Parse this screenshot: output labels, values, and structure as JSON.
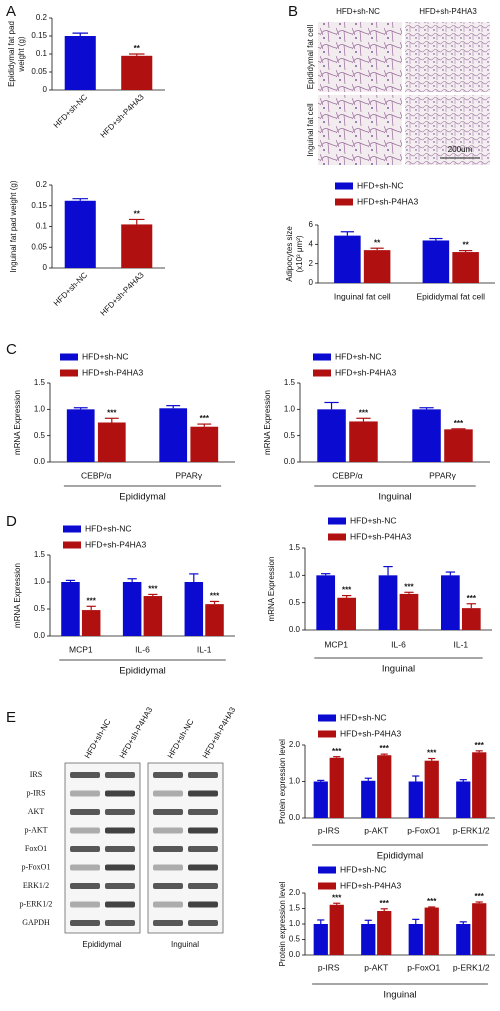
{
  "panel_labels": [
    "A",
    "B",
    "C",
    "D",
    "E"
  ],
  "histology": {
    "columns": [
      "HFD+sh-NC",
      "HFD+sh-P4HA3"
    ],
    "rows": [
      "Epididymal fat cell",
      "Inguinal fat cell"
    ],
    "scale_bar": "200um"
  },
  "blot": {
    "columns": [
      "HFD+sh-NC",
      "HFD+sh-P4HA3"
    ],
    "rows": [
      "IRS",
      "p-IRS",
      "AKT",
      "p-AKT",
      "FoxO1",
      "p-FoxO1",
      "ERK1/2",
      "p-ERK1/2",
      "GAPDH"
    ],
    "tissues": [
      "Epididymal",
      "Inguinal"
    ]
  },
  "chart_data": [
    {
      "type": "bar",
      "ylabel": [
        "Epididymal fat pad",
        "weight (g)"
      ],
      "categories": [
        "HFD+sh-NC",
        "HFD+sh-P4HA3"
      ],
      "values": [
        0.15,
        0.095
      ],
      "errors": [
        0.008,
        0.005
      ],
      "colors": [
        "#0a0ad0",
        "#b01010"
      ],
      "significance": [
        null,
        "**"
      ],
      "ylim": [
        0,
        0.2
      ],
      "yticks": [
        0,
        0.05,
        0.1,
        0.15,
        0.2
      ]
    },
    {
      "type": "bar",
      "ylabel": [
        "Inguinal fat pad weight (g)"
      ],
      "categories": [
        "HFD+sh-NC",
        "HFD+sh-P4HA3"
      ],
      "values": [
        0.162,
        0.105
      ],
      "errors": [
        0.005,
        0.012
      ],
      "colors": [
        "#0a0ad0",
        "#b01010"
      ],
      "significance": [
        null,
        "**"
      ],
      "ylim": [
        0,
        0.2
      ],
      "yticks": [
        0,
        0.05,
        0.1,
        0.15,
        0.2
      ]
    },
    {
      "type": "bar",
      "ylabel": [
        "Adipocytes size",
        "(x10³ μm²)"
      ],
      "categories": [
        "Inguinal fat cell",
        "Epididymal  fat cell"
      ],
      "series": [
        {
          "name": "HFD+sh-NC",
          "color": "#0a0ad0",
          "values": [
            4.9,
            4.4
          ],
          "errors": [
            0.4,
            0.2
          ]
        },
        {
          "name": "HFD+sh-P4HA3",
          "color": "#b01010",
          "values": [
            3.4,
            3.2
          ],
          "errors": [
            0.2,
            0.15
          ],
          "significance": [
            "**",
            "**"
          ]
        }
      ],
      "ylim": [
        0,
        6
      ],
      "yticks": [
        0,
        2,
        4,
        6
      ],
      "legend": true
    },
    {
      "type": "bar",
      "ylabel": [
        "mRNA Expression"
      ],
      "categories": [
        "CEBP/α",
        "PPARγ"
      ],
      "group_label": "Epididymal",
      "series": [
        {
          "name": "HFD+sh-NC",
          "color": "#0a0ad0",
          "values": [
            1.0,
            1.02
          ],
          "errors": [
            0.03,
            0.05
          ]
        },
        {
          "name": "HFD+sh-P4HA3",
          "color": "#b01010",
          "values": [
            0.75,
            0.67
          ],
          "errors": [
            0.08,
            0.05
          ],
          "significance": [
            "***",
            "***"
          ]
        }
      ],
      "ylim": [
        0,
        1.5
      ],
      "yticks": [
        {
          "value": 0,
          "label": "0.0"
        },
        0.5,
        {
          "value": 1,
          "label": "1.0"
        },
        1.5
      ],
      "legend": true
    },
    {
      "type": "bar",
      "ylabel": [
        "mRNA Expression"
      ],
      "categories": [
        "CEBP/α",
        "PPARγ"
      ],
      "group_label": "Inguinal",
      "series": [
        {
          "name": "HFD+sh-NC",
          "color": "#0a0ad0",
          "values": [
            1.0,
            1.0
          ],
          "errors": [
            0.13,
            0.03
          ]
        },
        {
          "name": "HFD+sh-P4HA3",
          "color": "#b01010",
          "values": [
            0.77,
            0.62
          ],
          "errors": [
            0.06,
            0.01
          ],
          "significance": [
            "***",
            "***"
          ]
        }
      ],
      "ylim": [
        0,
        1.5
      ],
      "yticks": [
        {
          "value": 0,
          "label": "0.0"
        },
        0.5,
        {
          "value": 1,
          "label": "1.0"
        },
        1.5
      ],
      "legend": true
    },
    {
      "type": "bar",
      "ylabel": [
        "mRNA Expression"
      ],
      "categories": [
        "MCP1",
        "IL-6",
        "IL-1"
      ],
      "group_label": "Epididymal",
      "series": [
        {
          "name": "HFD+sh-NC",
          "color": "#0a0ad0",
          "values": [
            1.0,
            1.0,
            1.0
          ],
          "errors": [
            0.03,
            0.06,
            0.15
          ]
        },
        {
          "name": "HFD+sh-P4HA3",
          "color": "#b01010",
          "values": [
            0.48,
            0.74,
            0.59
          ],
          "errors": [
            0.07,
            0.03,
            0.05
          ],
          "significance": [
            "***",
            "***",
            "***"
          ]
        }
      ],
      "ylim": [
        0,
        1.5
      ],
      "yticks": [
        {
          "value": 0,
          "label": "0.0"
        },
        0.5,
        {
          "value": 1,
          "label": "1.0"
        },
        1.5
      ],
      "legend": true
    },
    {
      "type": "bar",
      "ylabel": [
        "mRNA Expression"
      ],
      "categories": [
        "MCP1",
        "IL-6",
        "IL-1"
      ],
      "group_label": "Inguinal",
      "series": [
        {
          "name": "HFD+sh-NC",
          "color": "#0a0ad0",
          "values": [
            1.0,
            1.0,
            1.0
          ],
          "errors": [
            0.03,
            0.16,
            0.06
          ]
        },
        {
          "name": "HFD+sh-P4HA3",
          "color": "#b01010",
          "values": [
            0.59,
            0.66,
            0.4
          ],
          "errors": [
            0.04,
            0.03,
            0.08
          ],
          "significance": [
            "***",
            "***",
            "***"
          ]
        }
      ],
      "ylim": [
        0,
        1.5
      ],
      "yticks": [
        {
          "value": 0,
          "label": "0.0"
        },
        0.5,
        {
          "value": 1,
          "label": "1.0"
        },
        1.5
      ],
      "legend": true
    },
    {
      "type": "bar",
      "ylabel": [
        "Protein expression  level"
      ],
      "categories": [
        "p-IRS",
        "p-AKT",
        "p-FoxO1",
        "p-ERK1/2"
      ],
      "group_label": "Epididymal",
      "series": [
        {
          "name": "HFD+sh-NC",
          "color": "#0a0ad0",
          "values": [
            1.0,
            1.02,
            1.0,
            1.0
          ],
          "errors": [
            0.03,
            0.07,
            0.15,
            0.05
          ]
        },
        {
          "name": "HFD+sh-P4HA3",
          "color": "#b01010",
          "values": [
            1.65,
            1.72,
            1.57,
            1.8
          ],
          "errors": [
            0.03,
            0.03,
            0.06,
            0.04
          ],
          "significance": [
            "***",
            "***",
            "***",
            "***"
          ]
        }
      ],
      "ylim": [
        0,
        2
      ],
      "yticks": [
        {
          "value": 0,
          "label": "0.0"
        },
        {
          "value": 1,
          "label": "1.0"
        },
        {
          "value": 2,
          "label": "2.0"
        }
      ],
      "legend": true
    },
    {
      "type": "bar",
      "ylabel": [
        "Protein expression  level"
      ],
      "categories": [
        "p-IRS",
        "p-AKT",
        "p-FoxO1",
        "p-ERK1/2"
      ],
      "group_label": "Inguinal",
      "series": [
        {
          "name": "HFD+sh-NC",
          "color": "#0a0ad0",
          "values": [
            1.0,
            1.0,
            1.0,
            1.0
          ],
          "errors": [
            0.13,
            0.12,
            0.15,
            0.07
          ]
        },
        {
          "name": "HFD+sh-P4HA3",
          "color": "#b01010",
          "values": [
            1.62,
            1.42,
            1.53,
            1.67
          ],
          "errors": [
            0.05,
            0.07,
            0.02,
            0.04
          ],
          "significance": [
            "***",
            "***",
            "***",
            "***"
          ]
        }
      ],
      "ylim": [
        0,
        2
      ],
      "yticks": [
        {
          "value": 0,
          "label": "0.0"
        },
        0.5,
        {
          "value": 1,
          "label": "1.0"
        },
        1.5,
        {
          "value": 2,
          "label": "2.0"
        }
      ],
      "legend": true
    }
  ]
}
